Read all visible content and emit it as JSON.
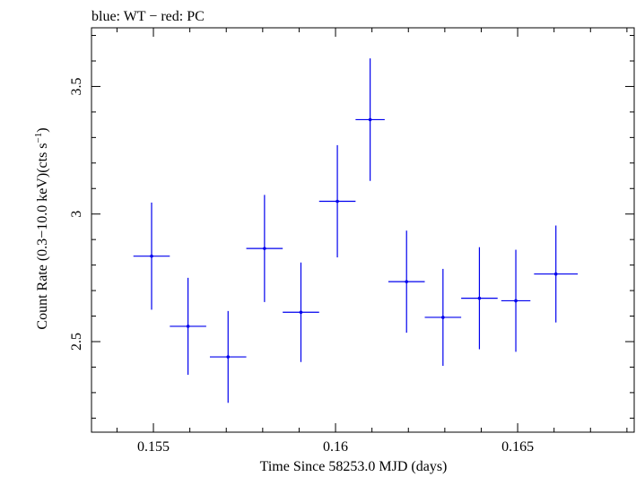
{
  "chart_data": {
    "type": "scatter",
    "title": "blue: WT − red: PC",
    "xlabel": "Time Since 58253.0 MJD (days)",
    "ylabel_main": "Count Rate (0.3−10.0 keV)(cts s",
    "ylabel_sup": "−1",
    "ylabel_close": ")",
    "xlim": [
      0.1533,
      0.1682
    ],
    "ylim": [
      2.145,
      3.73
    ],
    "xticks": [
      {
        "value": 0.155,
        "label": "0.155"
      },
      {
        "value": 0.16,
        "label": "0.16"
      },
      {
        "value": 0.165,
        "label": "0.165"
      }
    ],
    "yticks": [
      {
        "value": 2.5,
        "label": "2.5"
      },
      {
        "value": 3.0,
        "label": "3"
      },
      {
        "value": 3.5,
        "label": "3.5"
      }
    ],
    "x_minor_step": 0.001,
    "y_minor_step": 0.1,
    "grid": false,
    "series": [
      {
        "color": "#0000ee",
        "points": [
          {
            "x": 0.15495,
            "xerr": 0.0005,
            "y": 2.835,
            "yerr": 0.21
          },
          {
            "x": 0.15595,
            "xerr": 0.0005,
            "y": 2.56,
            "yerr": 0.19
          },
          {
            "x": 0.15705,
            "xerr": 0.0005,
            "y": 2.44,
            "yerr": 0.18
          },
          {
            "x": 0.15805,
            "xerr": 0.0005,
            "y": 2.865,
            "yerr": 0.21
          },
          {
            "x": 0.15905,
            "xerr": 0.0005,
            "y": 2.615,
            "yerr": 0.195
          },
          {
            "x": 0.16005,
            "xerr": 0.0005,
            "y": 3.05,
            "yerr": 0.22
          },
          {
            "x": 0.16095,
            "xerr": 0.0004,
            "y": 3.37,
            "yerr": 0.24
          },
          {
            "x": 0.16195,
            "xerr": 0.0005,
            "y": 2.735,
            "yerr": 0.2
          },
          {
            "x": 0.16295,
            "xerr": 0.0005,
            "y": 2.595,
            "yerr": 0.19
          },
          {
            "x": 0.16395,
            "xerr": 0.0005,
            "y": 2.67,
            "yerr": 0.2
          },
          {
            "x": 0.16495,
            "xerr": 0.0004,
            "y": 2.66,
            "yerr": 0.2
          },
          {
            "x": 0.16605,
            "xerr": 0.0006,
            "y": 2.765,
            "yerr": 0.19
          }
        ]
      }
    ]
  }
}
